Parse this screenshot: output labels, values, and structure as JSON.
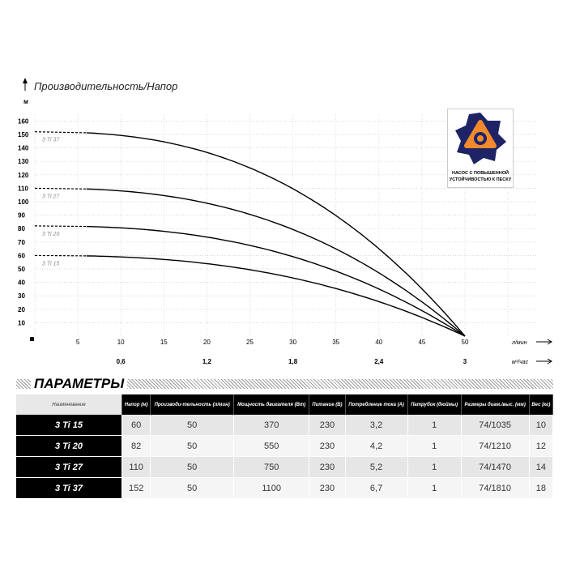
{
  "chart_data": {
    "type": "line",
    "title": "Производительность/Напор",
    "ylabel": "м",
    "xlabel": "л/мин",
    "x2label": "м³/час",
    "ylim": [
      0,
      160
    ],
    "xlim": [
      0,
      50
    ],
    "yticks": [
      10,
      20,
      30,
      40,
      50,
      60,
      70,
      80,
      90,
      100,
      110,
      120,
      130,
      140,
      150,
      160
    ],
    "xticks": [
      5,
      10,
      15,
      20,
      25,
      30,
      35,
      40,
      45,
      50
    ],
    "x2ticks": [
      {
        "at": 10,
        "label": "0,6"
      },
      {
        "at": 20,
        "label": "1,2"
      },
      {
        "at": 30,
        "label": "1,8"
      },
      {
        "at": 40,
        "label": "2,4"
      },
      {
        "at": 50,
        "label": "3"
      }
    ],
    "grid": true,
    "x": [
      0,
      5,
      10,
      15,
      20,
      25,
      30,
      35,
      40,
      45,
      50
    ],
    "series": [
      {
        "name": "3 Ti 37",
        "values": [
          152,
          152,
          149,
          144,
          137,
          125,
          110,
          90,
          65,
          35,
          0
        ]
      },
      {
        "name": "3 Ti 27",
        "values": [
          110,
          110,
          108,
          105,
          99,
          91,
          79,
          65,
          47,
          25,
          0
        ]
      },
      {
        "name": "3 Ti 20",
        "values": [
          82,
          82,
          81,
          78,
          74,
          67,
          59,
          48,
          35,
          19,
          0
        ]
      },
      {
        "name": "3 Ti 15",
        "values": [
          60,
          60,
          59,
          57,
          54,
          49,
          43,
          35,
          26,
          14,
          0
        ]
      }
    ]
  },
  "badge": {
    "caption1": "НАСОС С ПОВЫШЕННОЙ",
    "caption2": "УСТОЙЧИВОСТЬЮ К ПЕСКУ",
    "colors": {
      "blue": "#1e2366",
      "orange": "#f08a2c"
    }
  },
  "params": {
    "title": "ПАРАМЕТРЫ",
    "headers": [
      "Наименование",
      "Напор (м)",
      "Производи-тельность (л/мин)",
      "Мощность двигателя (Вт)",
      "Питание (В)",
      "Потребление тока (А)",
      "Патрубок (дюймы)",
      "Размеры диам./выс. (мм)",
      "Вес (кг)"
    ],
    "rows": [
      [
        "3 Ti 15",
        "60",
        "50",
        "370",
        "230",
        "3,2",
        "1",
        "74/1035",
        "10"
      ],
      [
        "3 Ti 20",
        "82",
        "50",
        "550",
        "230",
        "4,2",
        "1",
        "74/1210",
        "12"
      ],
      [
        "3 Ti 27",
        "110",
        "50",
        "750",
        "230",
        "5,2",
        "1",
        "74/1470",
        "14"
      ],
      [
        "3 Ti 37",
        "152",
        "50",
        "1100",
        "230",
        "6,7",
        "1",
        "74/1810",
        "18"
      ]
    ]
  }
}
